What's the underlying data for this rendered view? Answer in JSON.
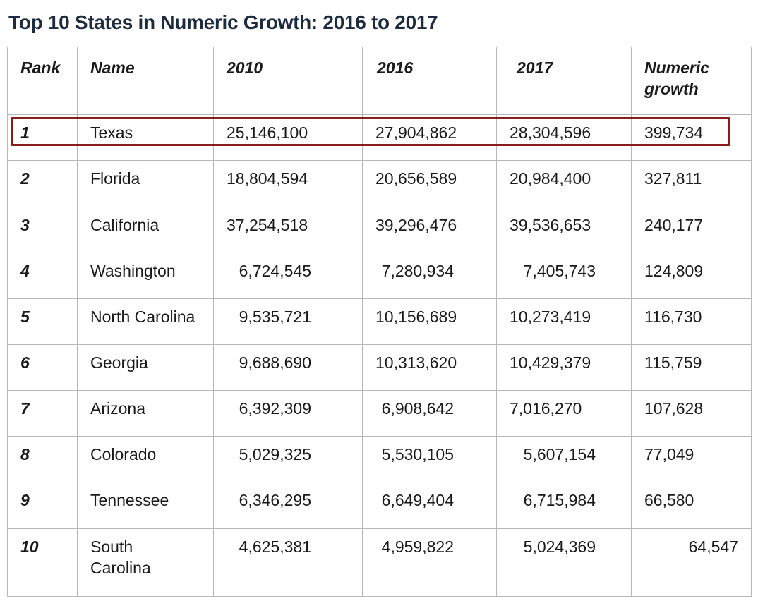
{
  "title": "Top 10 States in Numeric Growth: 2016 to 2017",
  "headers": {
    "rank": "Rank",
    "name": "Name",
    "y2010": "2010",
    "y2016": "2016",
    "y2017": "2017",
    "growth_line1": "Numeric",
    "growth_line2": "growth"
  },
  "rows": [
    {
      "rank": "1",
      "name": "Texas",
      "y2010": "25,146,100",
      "y2016": "27,904,862",
      "y2017": "28,304,596",
      "growth": "399,734"
    },
    {
      "rank": "2",
      "name": "Florida",
      "y2010": "18,804,594",
      "y2016": "20,656,589",
      "y2017": "20,984,400",
      "growth": "327,811"
    },
    {
      "rank": "3",
      "name": "California",
      "y2010": "37,254,518",
      "y2016": "39,296,476",
      "y2017": "39,536,653",
      "growth": "240,177"
    },
    {
      "rank": "4",
      "name": "Washington",
      "y2010": "6,724,545",
      "y2016": "7,280,934",
      "y2017": "7,405,743",
      "growth": "124,809"
    },
    {
      "rank": "5",
      "name": "North Carolina",
      "y2010": "9,535,721",
      "y2016": "10,156,689",
      "y2017": "10,273,419",
      "growth": "116,730"
    },
    {
      "rank": "6",
      "name": "Georgia",
      "y2010": "9,688,690",
      "y2016": "10,313,620",
      "y2017": "10,429,379",
      "growth": "115,759"
    },
    {
      "rank": "7",
      "name": "Arizona",
      "y2010": "6,392,309",
      "y2016": "6,908,642",
      "y2017": "7,016,270",
      "growth": "107,628"
    },
    {
      "rank": "8",
      "name": "Colorado",
      "y2010": "5,029,325",
      "y2016": "5,530,105",
      "y2017": "5,607,154",
      "growth": "77,049"
    },
    {
      "rank": "9",
      "name": "Tennessee",
      "y2010": "6,346,295",
      "y2016": "6,649,404",
      "y2017": "6,715,984",
      "growth": "66,580"
    },
    {
      "rank": "10",
      "name_line1": "South",
      "name_line2": "Carolina",
      "y2010": "4,625,381",
      "y2016": "4,959,822",
      "y2017": "5,024,369",
      "growth": "64,547"
    }
  ],
  "highlight_color": "#8b1c1c"
}
